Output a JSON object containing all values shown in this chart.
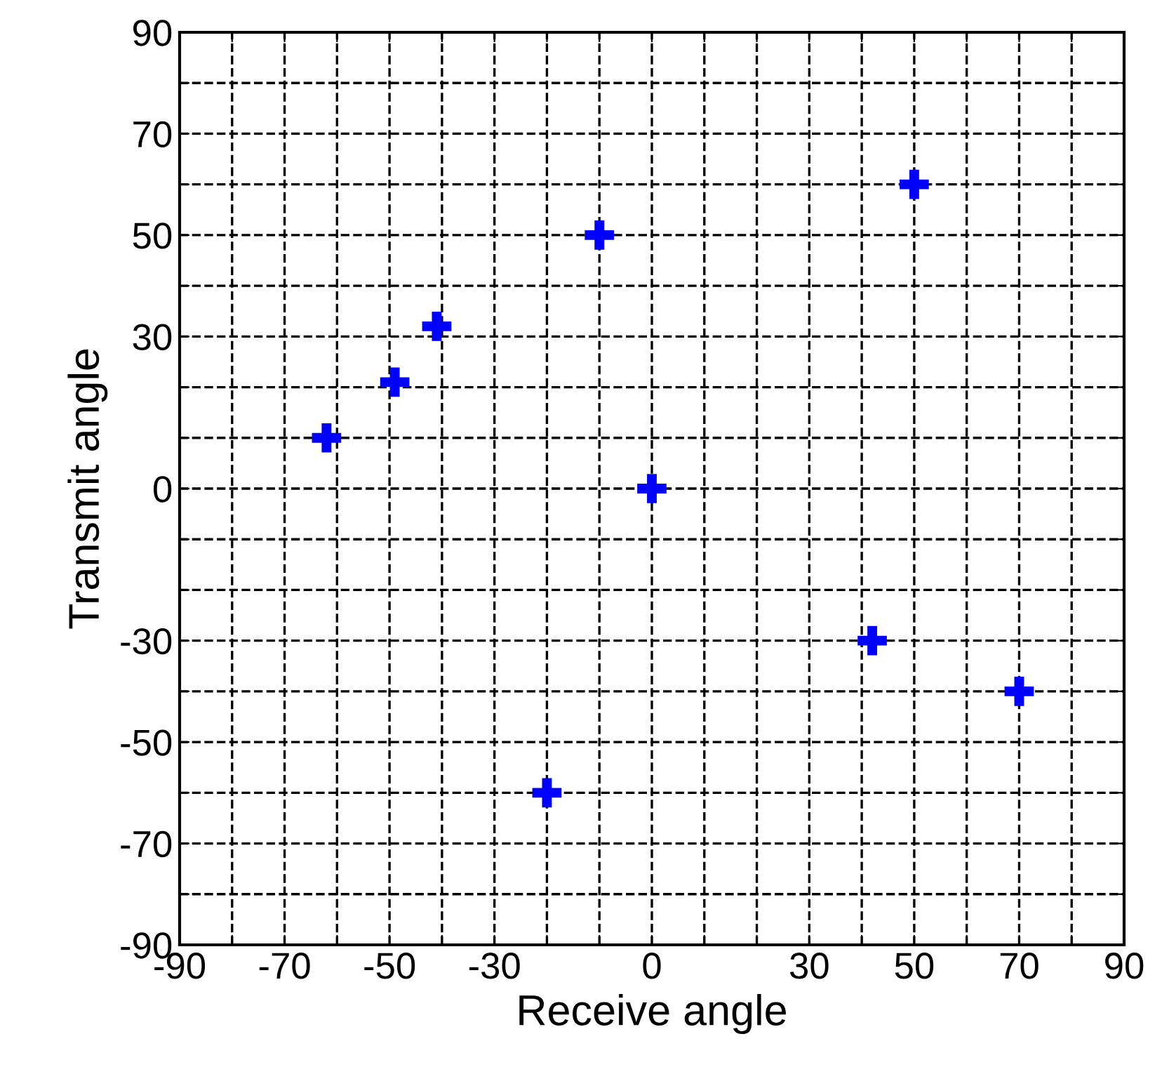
{
  "chart_data": {
    "type": "scatter",
    "xlabel": "Receive angle",
    "ylabel": "Transmit angle",
    "x": [
      -62,
      -49,
      -41,
      -10,
      0,
      50,
      42,
      -20,
      70
    ],
    "series": [
      {
        "color": "#0000ff",
        "values": [
          10,
          21,
          32,
          50,
          0,
          60,
          -30,
          -60,
          -40
        ]
      }
    ],
    "marker": "cross",
    "grid": true,
    "line_style": "dashed",
    "xlim": [
      -90,
      90
    ],
    "ylim": [
      -90,
      90
    ],
    "xticks": [
      -90,
      {
        "value": -80,
        "label": null
      },
      -70,
      {
        "value": -60,
        "label": null
      },
      -50,
      {
        "value": -40,
        "label": null
      },
      -30,
      {
        "value": -20,
        "label": null
      },
      {
        "value": -10,
        "label": null
      },
      0,
      {
        "value": 10,
        "label": null
      },
      {
        "value": 20,
        "label": null
      },
      30,
      {
        "value": 40,
        "label": null
      },
      50,
      {
        "value": 60,
        "label": null
      },
      70,
      {
        "value": 80,
        "label": null
      },
      90
    ],
    "yticks": [
      -90,
      {
        "value": -80,
        "label": null
      },
      -70,
      {
        "value": -60,
        "label": null
      },
      -50,
      {
        "value": -40,
        "label": null
      },
      -30,
      {
        "value": -20,
        "label": null
      },
      {
        "value": -10,
        "label": null
      },
      0,
      {
        "value": 10,
        "label": null
      },
      {
        "value": 20,
        "label": null
      },
      30,
      {
        "value": 40,
        "label": null
      },
      50,
      {
        "value": 60,
        "label": null
      },
      70,
      {
        "value": 80,
        "label": null
      },
      90
    ]
  }
}
